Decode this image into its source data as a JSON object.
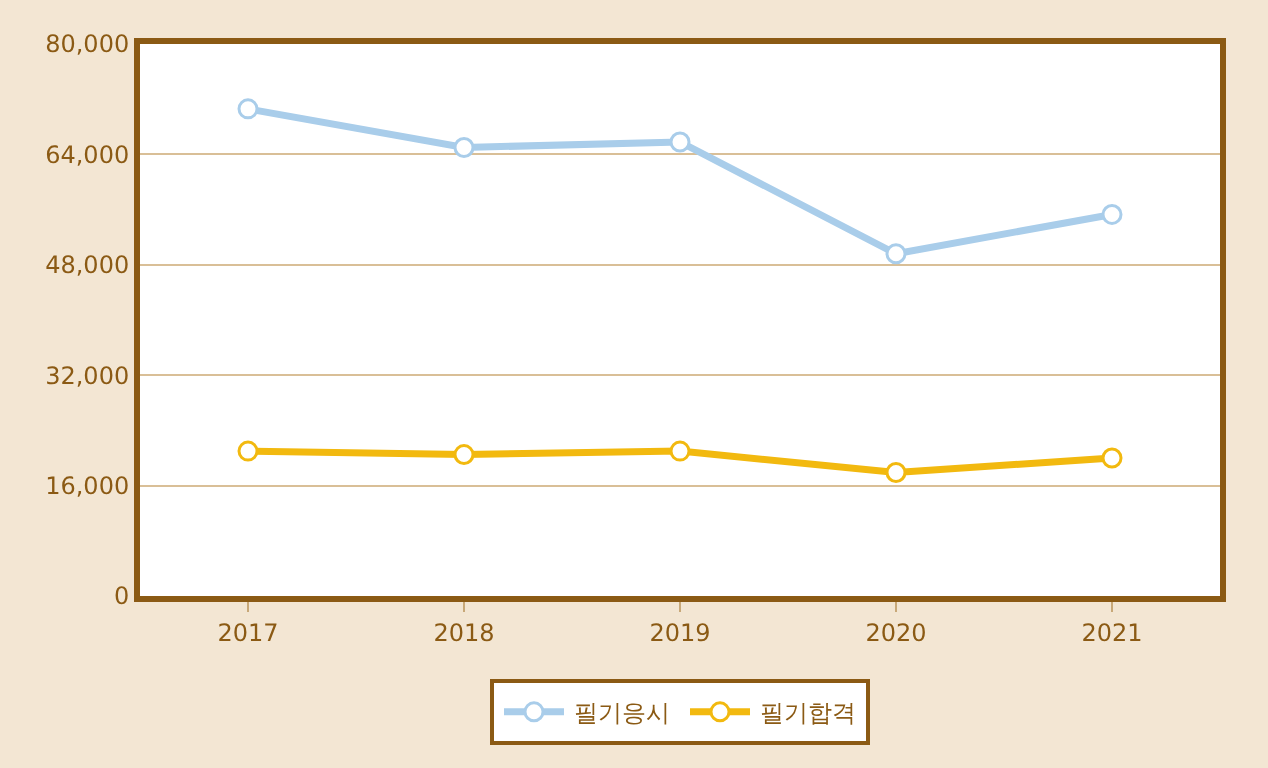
{
  "chart_data": {
    "type": "line",
    "categories": [
      "2017",
      "2018",
      "2019",
      "2020",
      "2021"
    ],
    "series": [
      {
        "name": "필기응시",
        "color": "#a9cdea",
        "values": [
          70600,
          65000,
          65800,
          49600,
          55300
        ]
      },
      {
        "name": "필기합격",
        "color": "#f2b90f",
        "values": [
          21000,
          20500,
          21000,
          17900,
          20000
        ]
      }
    ],
    "ylim": [
      0,
      80000
    ],
    "yticks": [
      {
        "value": 0,
        "label": "0"
      },
      {
        "value": 16000,
        "label": "16,000"
      },
      {
        "value": 32000,
        "label": "32,000"
      },
      {
        "value": 48000,
        "label": "48,000"
      },
      {
        "value": 64000,
        "label": "64,000"
      },
      {
        "value": 80000,
        "label": "80,000"
      }
    ],
    "grid": "y",
    "legend": "bottom",
    "marker": "circle",
    "line_style": "solid"
  }
}
